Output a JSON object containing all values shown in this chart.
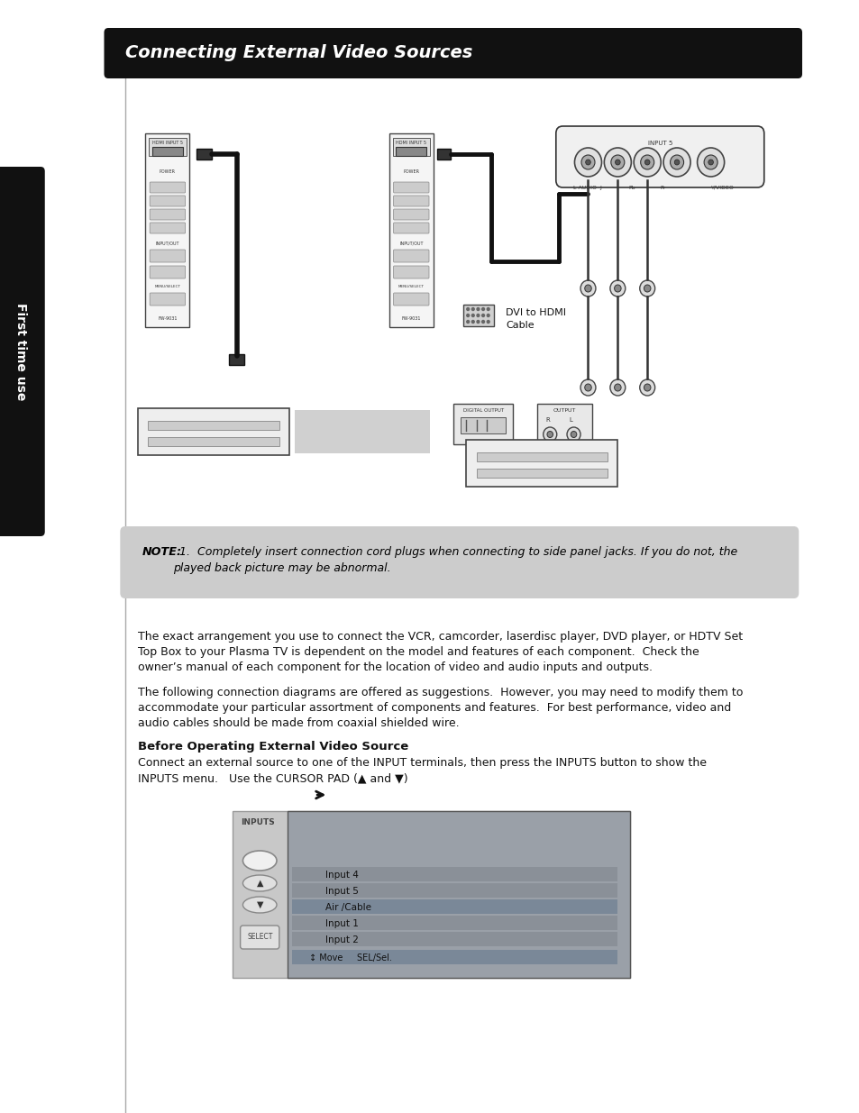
{
  "title": "Connecting External Video Sources",
  "title_bg": "#111111",
  "title_fg": "#ffffff",
  "sidebar_text": "First time use",
  "sidebar_bg": "#111111",
  "note_bg": "#cccccc",
  "note_bold": "NOTE:",
  "para1_line1": "The exact arrangement you use to connect the VCR, camcorder, laserdisc player, DVD player, or HDTV Set",
  "para1_line2": "Top Box to your Plasma TV is dependent on the model and features of each component.  Check the",
  "para1_line3": "owner’s manual of each component for the location of video and audio inputs and outputs.",
  "para2_line1": "The following connection diagrams are offered as suggestions.  However, you may need to modify them to",
  "para2_line2": "accommodate your particular assortment of components and features.  For best performance, video and",
  "para2_line3": "audio cables should be made from coaxial shielded wire.",
  "section_title": "Before Operating External Video Source",
  "section_line1": "Connect an external source to one of the INPUT terminals, then press the INPUTS button to show the",
  "section_line2": "INPUTS menu.   Use the CURSOR PAD (▲ and ▼)",
  "note_line1": "1.  Completely insert connection cord plugs when connecting to side panel jacks. If you do not, the",
  "note_line2": "played back picture may be abnormal.",
  "dvi_line1": "DVI to HDMI",
  "dvi_line2": "Cable",
  "menu_items": [
    "Input 4",
    "Input 5",
    "Air /Cable",
    "Input 1",
    "Input 2"
  ],
  "menu_selected": 2,
  "menu_label": "INPUTS",
  "menu_bottom": "↕ Move     SEL/Sel.",
  "page_bg": "#ffffff"
}
